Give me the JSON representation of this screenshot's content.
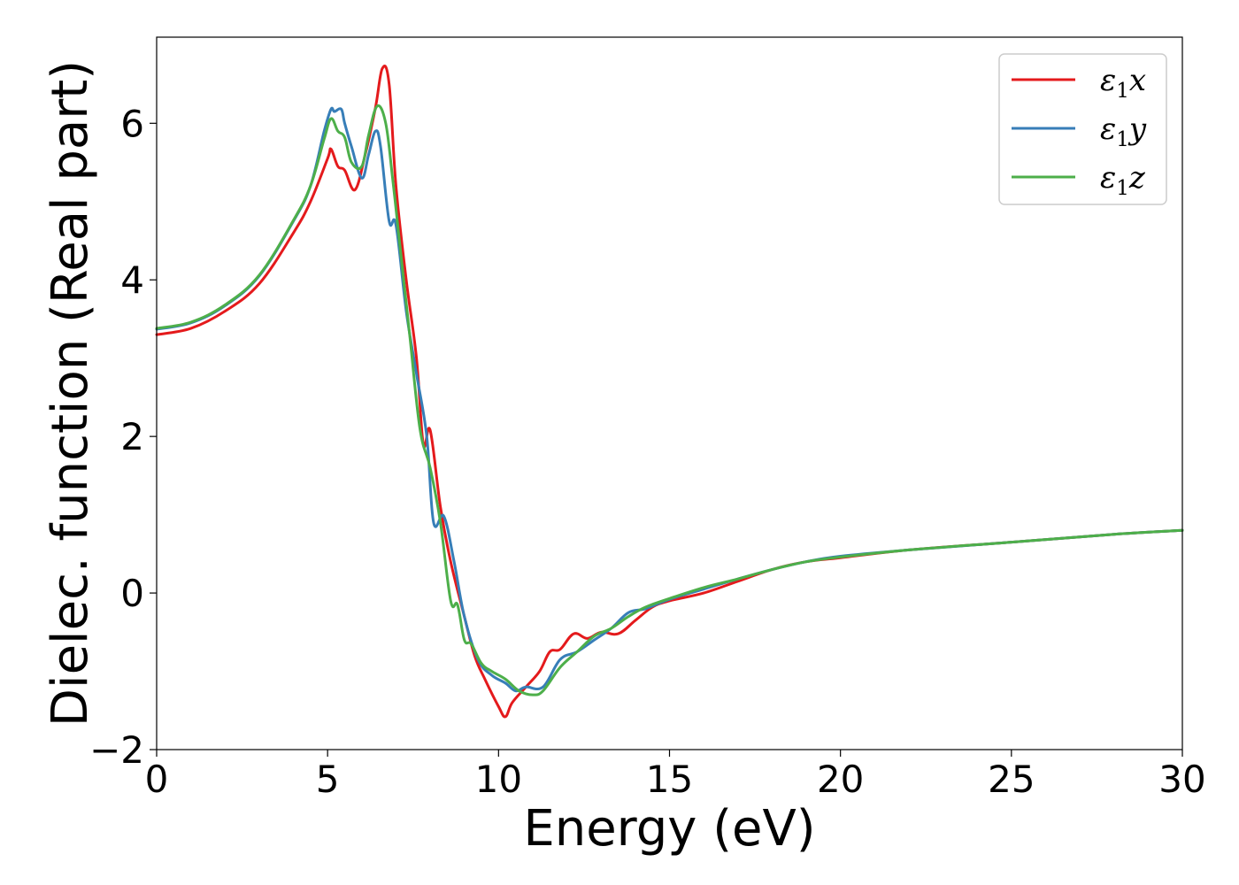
{
  "chart_data": {
    "type": "line",
    "title": "",
    "xlabel": "Energy (eV)",
    "ylabel": "Dielec. function (Real part)",
    "xlim": [
      0,
      30
    ],
    "ylim": [
      -2,
      7.1
    ],
    "xticks": [
      0,
      5,
      10,
      15,
      20,
      25,
      30
    ],
    "yticks": [
      -2,
      0,
      2,
      4,
      6
    ],
    "xtick_labels": [
      "0",
      "5",
      "10",
      "15",
      "20",
      "25",
      "30"
    ],
    "ytick_labels": [
      "−2",
      "0",
      "2",
      "4",
      "6"
    ],
    "grid": false,
    "legend_position": "upper right",
    "series": [
      {
        "name": "ε1x",
        "legend": {
          "main": "ε",
          "sub": "1",
          "var": "x"
        },
        "color": "#e41a1c",
        "x": [
          0,
          1,
          2,
          3,
          4,
          4.5,
          5,
          5.1,
          5.3,
          5.5,
          5.8,
          6.1,
          6.4,
          6.6,
          6.8,
          7.0,
          7.3,
          7.6,
          7.8,
          8.0,
          8.3,
          8.6,
          9.0,
          9.3,
          9.6,
          10.0,
          10.2,
          10.4,
          10.8,
          11.2,
          11.5,
          11.8,
          12.2,
          12.6,
          13.0,
          13.5,
          14.0,
          14.5,
          15.0,
          16.0,
          17.0,
          18.0,
          19.0,
          20.0,
          22.0,
          25.0,
          28.0,
          30.0
        ],
        "y": [
          3.3,
          3.38,
          3.6,
          3.95,
          4.6,
          5.0,
          5.55,
          5.67,
          5.45,
          5.4,
          5.15,
          5.6,
          6.2,
          6.7,
          6.5,
          5.2,
          4.0,
          3.0,
          1.9,
          2.08,
          1.1,
          0.4,
          -0.3,
          -0.8,
          -1.1,
          -1.45,
          -1.58,
          -1.4,
          -1.2,
          -1.0,
          -0.75,
          -0.72,
          -0.52,
          -0.58,
          -0.5,
          -0.52,
          -0.35,
          -0.18,
          -0.1,
          0.0,
          0.15,
          0.3,
          0.4,
          0.45,
          0.55,
          0.65,
          0.75,
          0.8
        ]
      },
      {
        "name": "ε1y",
        "legend": {
          "main": "ε",
          "sub": "1",
          "var": "y"
        },
        "color": "#377eb8",
        "x": [
          0,
          1,
          2,
          3,
          4,
          4.5,
          4.9,
          5.1,
          5.2,
          5.4,
          5.5,
          5.7,
          6.0,
          6.2,
          6.4,
          6.55,
          6.8,
          7.0,
          7.3,
          7.6,
          7.9,
          8.1,
          8.4,
          8.7,
          9.0,
          9.4,
          9.8,
          10.2,
          10.5,
          10.8,
          11.3,
          11.8,
          12.3,
          12.8,
          13.3,
          13.8,
          14.3,
          15.0,
          16.0,
          17.0,
          18.0,
          19.0,
          20.0,
          22.0,
          25.0,
          28.0,
          30.0
        ],
        "y": [
          3.37,
          3.45,
          3.67,
          4.05,
          4.75,
          5.2,
          5.9,
          6.18,
          6.15,
          6.18,
          6.0,
          5.7,
          5.3,
          5.6,
          5.9,
          5.7,
          4.75,
          4.7,
          3.6,
          2.8,
          2.0,
          0.9,
          0.98,
          0.4,
          -0.3,
          -0.85,
          -1.05,
          -1.15,
          -1.25,
          -1.2,
          -1.2,
          -0.85,
          -0.75,
          -0.6,
          -0.45,
          -0.25,
          -0.2,
          -0.08,
          0.05,
          0.18,
          0.3,
          0.4,
          0.47,
          0.55,
          0.65,
          0.75,
          0.8
        ]
      },
      {
        "name": "ε1z",
        "legend": {
          "main": "ε",
          "sub": "1",
          "var": "z"
        },
        "color": "#4daf4a",
        "x": [
          0,
          1,
          2,
          3,
          4,
          4.5,
          4.9,
          5.1,
          5.3,
          5.5,
          5.7,
          6.0,
          6.2,
          6.45,
          6.7,
          6.9,
          7.1,
          7.4,
          7.7,
          8.0,
          8.3,
          8.6,
          8.8,
          9.0,
          9.2,
          9.5,
          9.8,
          10.2,
          10.6,
          11.0,
          11.3,
          11.8,
          12.3,
          12.8,
          13.3,
          13.8,
          14.3,
          15.0,
          16.0,
          17.0,
          18.0,
          19.0,
          20.0,
          22.0,
          25.0,
          28.0,
          30.0
        ],
        "y": [
          3.38,
          3.46,
          3.68,
          4.06,
          4.76,
          5.2,
          5.8,
          6.06,
          5.9,
          5.82,
          5.5,
          5.45,
          5.85,
          6.22,
          6.0,
          5.3,
          4.5,
          3.3,
          2.1,
          1.6,
          0.9,
          -0.1,
          -0.15,
          -0.6,
          -0.65,
          -0.9,
          -1.0,
          -1.1,
          -1.25,
          -1.3,
          -1.25,
          -0.95,
          -0.75,
          -0.55,
          -0.45,
          -0.3,
          -0.18,
          -0.07,
          0.07,
          0.18,
          0.3,
          0.4,
          0.46,
          0.55,
          0.65,
          0.75,
          0.8
        ]
      }
    ]
  }
}
